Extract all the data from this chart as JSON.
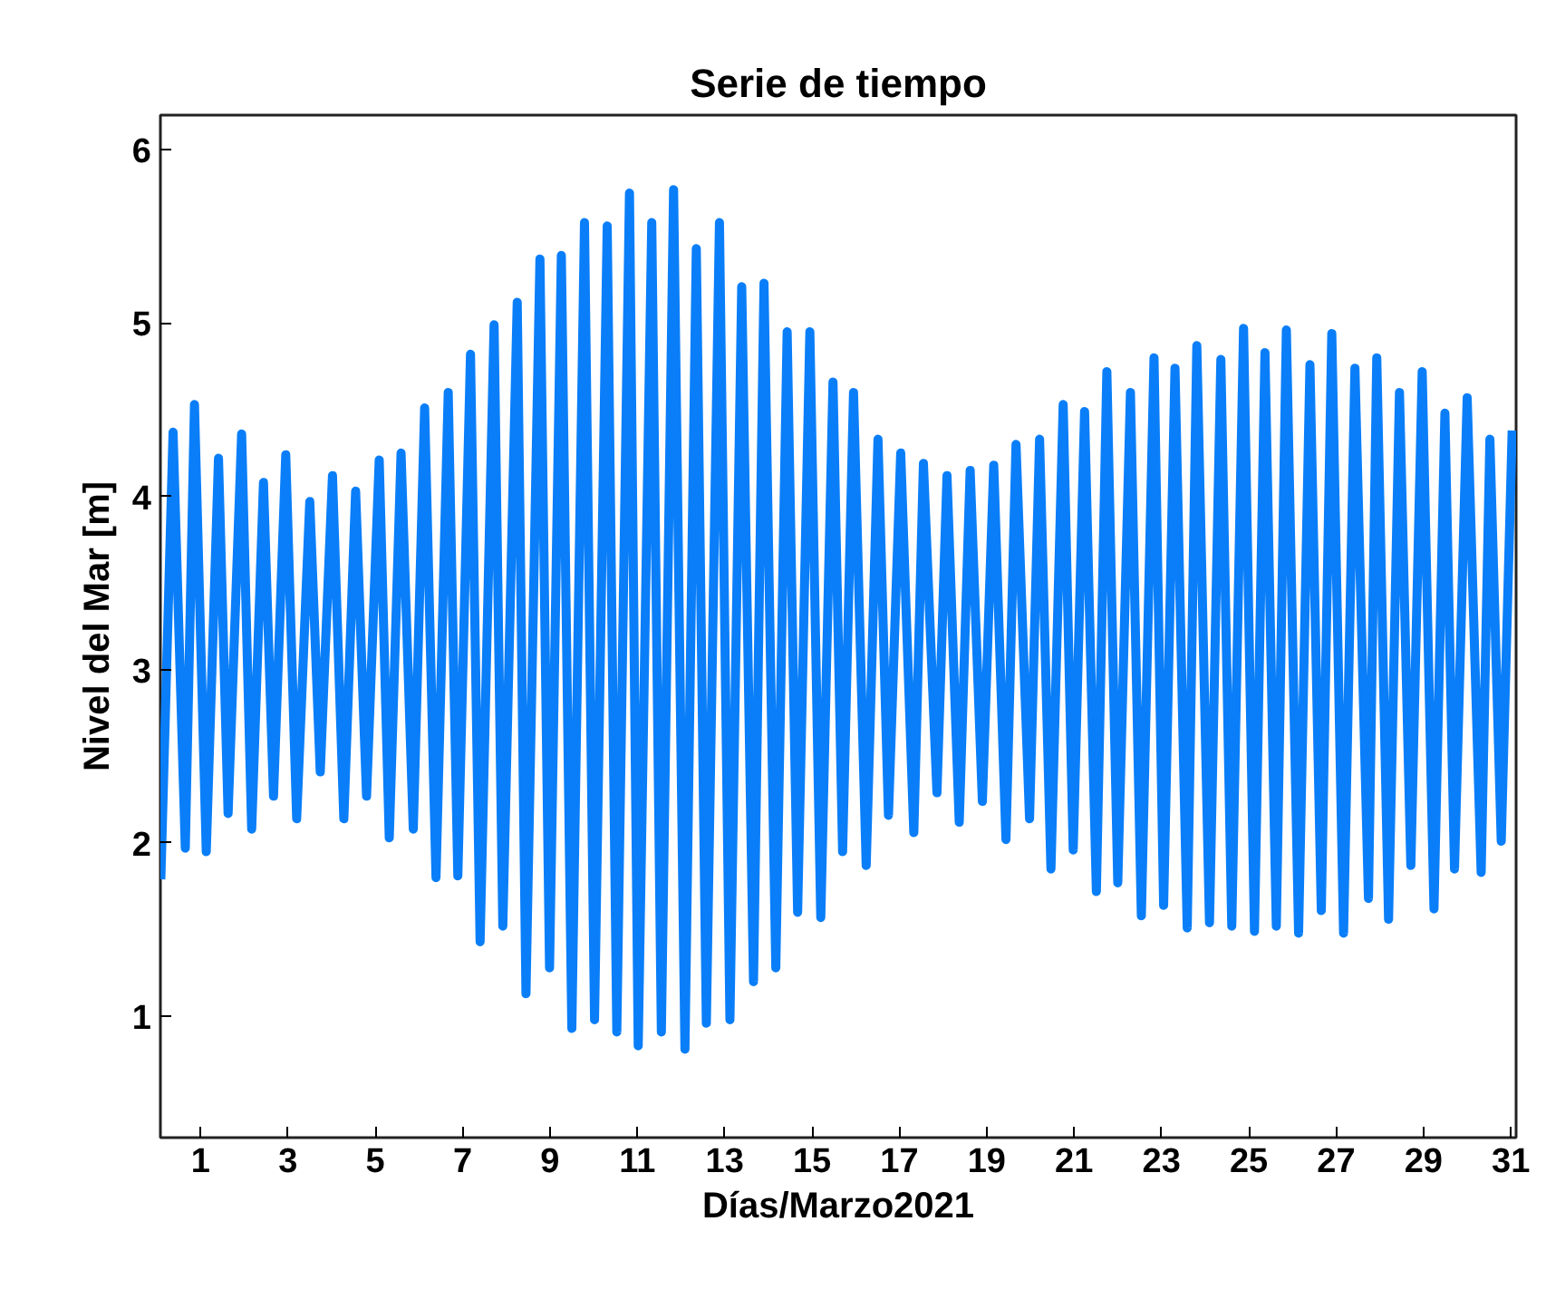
{
  "chart_data": {
    "type": "line",
    "title": "Serie de tiempo",
    "xlabel": "Días/Marzo2021",
    "ylabel": "Nivel del Mar [m]",
    "xlim": [
      0.08,
      31.12
    ],
    "ylim": [
      0.3,
      6.2
    ],
    "xticks": [
      1,
      3,
      5,
      7,
      9,
      11,
      13,
      15,
      17,
      19,
      21,
      23,
      25,
      27,
      29,
      31
    ],
    "yticks": [
      1,
      2,
      3,
      4,
      5,
      6
    ],
    "grid": false,
    "marker": "none",
    "line_style": "solid",
    "series": [
      {
        "color": "#0a7ef8",
        "x": [
          0.09,
          0.37,
          0.65,
          0.86,
          1.13,
          1.41,
          1.63,
          1.94,
          2.17,
          2.44,
          2.67,
          2.95,
          3.2,
          3.5,
          3.74,
          4.02,
          4.28,
          4.55,
          4.8,
          5.09,
          5.32,
          5.59,
          5.87,
          6.13,
          6.39,
          6.67,
          6.89,
          7.18,
          7.4,
          7.72,
          7.92,
          8.25,
          8.45,
          8.77,
          8.99,
          9.26,
          9.5,
          9.79,
          10.02,
          10.31,
          10.53,
          10.82,
          11.02,
          11.33,
          11.55,
          11.83,
          12.09,
          12.35,
          12.58,
          12.88,
          13.12,
          13.39,
          13.66,
          13.9,
          14.17,
          14.43,
          14.67,
          14.95,
          15.2,
          15.48,
          15.7,
          15.95,
          16.24,
          16.51,
          16.75,
          17.03,
          17.33,
          17.55,
          17.86,
          18.09,
          18.37,
          18.62,
          18.9,
          19.16,
          19.44,
          19.67,
          19.98,
          20.21,
          20.47,
          20.75,
          20.98,
          21.24,
          21.51,
          21.75,
          22.0,
          22.29,
          22.54,
          22.83,
          23.05,
          23.31,
          23.59,
          23.81,
          24.1,
          24.36,
          24.61,
          24.88,
          25.13,
          25.37,
          25.63,
          25.86,
          26.14,
          26.4,
          26.66,
          26.9,
          27.17,
          27.43,
          27.74,
          27.93,
          28.2,
          28.45,
          28.71,
          28.97,
          29.24,
          29.49,
          29.71,
          30.0,
          30.32,
          30.52,
          30.78,
          31.03
        ],
        "values": [
          1.79,
          4.37,
          1.97,
          4.53,
          1.95,
          4.22,
          2.17,
          4.36,
          2.08,
          4.08,
          2.27,
          4.24,
          2.14,
          3.97,
          2.41,
          4.12,
          2.14,
          4.03,
          2.27,
          4.21,
          2.03,
          4.25,
          2.08,
          4.51,
          1.8,
          4.6,
          1.81,
          4.82,
          1.43,
          4.99,
          1.52,
          5.12,
          1.13,
          5.37,
          1.28,
          5.39,
          0.93,
          5.58,
          0.98,
          5.56,
          0.91,
          5.75,
          0.83,
          5.58,
          0.91,
          5.77,
          0.81,
          5.43,
          0.96,
          5.58,
          0.98,
          5.21,
          1.2,
          5.23,
          1.28,
          4.95,
          1.6,
          4.95,
          1.57,
          4.66,
          1.95,
          4.6,
          1.87,
          4.33,
          2.16,
          4.25,
          2.06,
          4.19,
          2.29,
          4.12,
          2.12,
          4.15,
          2.24,
          4.18,
          2.02,
          4.3,
          2.14,
          4.33,
          1.85,
          4.53,
          1.96,
          4.49,
          1.72,
          4.72,
          1.77,
          4.6,
          1.58,
          4.8,
          1.64,
          4.74,
          1.51,
          4.87,
          1.54,
          4.79,
          1.52,
          4.97,
          1.49,
          4.83,
          1.52,
          4.96,
          1.48,
          4.76,
          1.61,
          4.94,
          1.48,
          4.74,
          1.68,
          4.8,
          1.56,
          4.6,
          1.87,
          4.72,
          1.62,
          4.48,
          1.85,
          4.57,
          1.83,
          4.33,
          2.01,
          4.38
        ]
      }
    ]
  }
}
